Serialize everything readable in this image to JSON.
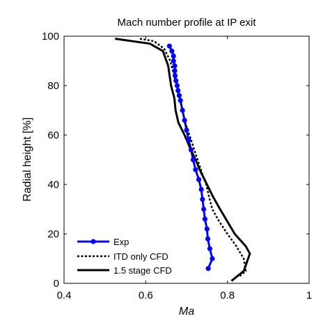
{
  "chart_data": {
    "type": "line",
    "title": "Mach number profile at IP exit",
    "xlabel": "Ma",
    "ylabel": "Radial height [%]",
    "xlim": [
      0.4,
      1.0
    ],
    "ylim": [
      0,
      100
    ],
    "xticks": [
      0.4,
      0.6,
      0.8,
      1
    ],
    "xtick_labels": [
      "0.4",
      "0.6",
      "0.8",
      "1"
    ],
    "yticks": [
      0,
      20,
      40,
      60,
      80,
      100
    ],
    "ytick_labels": [
      "0",
      "20",
      "40",
      "60",
      "80",
      "100"
    ],
    "grid": false,
    "legend_position": "bottom-left",
    "series": [
      {
        "name": "Exp",
        "color": "#0000ff",
        "style": "solid-markers",
        "x": [
          0.753,
          0.763,
          0.757,
          0.752,
          0.75,
          0.745,
          0.742,
          0.739,
          0.736,
          0.73,
          0.722,
          0.716,
          0.711,
          0.705,
          0.7,
          0.695,
          0.69,
          0.685,
          0.682,
          0.679,
          0.677,
          0.674,
          0.672,
          0.671,
          0.671,
          0.668,
          0.668,
          0.664,
          0.658
        ],
        "y": [
          6,
          10,
          14,
          18,
          22,
          26,
          30,
          34,
          38,
          42,
          46,
          50,
          54,
          58,
          62,
          66,
          70,
          74,
          76,
          78,
          80,
          82,
          84,
          86,
          88,
          90,
          92,
          94,
          96
        ]
      },
      {
        "name": "ITD only CFD",
        "color": "#000000",
        "style": "dashed",
        "x": [
          0.83,
          0.845,
          0.84,
          0.822,
          0.8,
          0.78,
          0.763,
          0.755,
          0.748,
          0.737,
          0.727,
          0.717,
          0.707,
          0.697,
          0.69,
          0.683,
          0.676,
          0.668,
          0.66,
          0.645,
          0.62,
          0.585
        ],
        "y": [
          3,
          5,
          10,
          15,
          20,
          25,
          30,
          35,
          40,
          45,
          50,
          55,
          60,
          65,
          70,
          75,
          80,
          85,
          90,
          95,
          98,
          99
        ]
      },
      {
        "name": "1.5 stage CFD",
        "color": "#000000",
        "style": "solid",
        "x": [
          0.81,
          0.84,
          0.855,
          0.845,
          0.818,
          0.8,
          0.782,
          0.765,
          0.75,
          0.735,
          0.722,
          0.708,
          0.695,
          0.68,
          0.673,
          0.67,
          0.662,
          0.655,
          0.642,
          0.61,
          0.525
        ],
        "y": [
          1,
          5,
          12,
          15,
          20,
          25,
          30,
          35,
          40,
          45,
          50,
          55,
          60,
          65,
          70,
          75,
          80,
          88,
          94,
          97,
          99
        ]
      }
    ]
  }
}
